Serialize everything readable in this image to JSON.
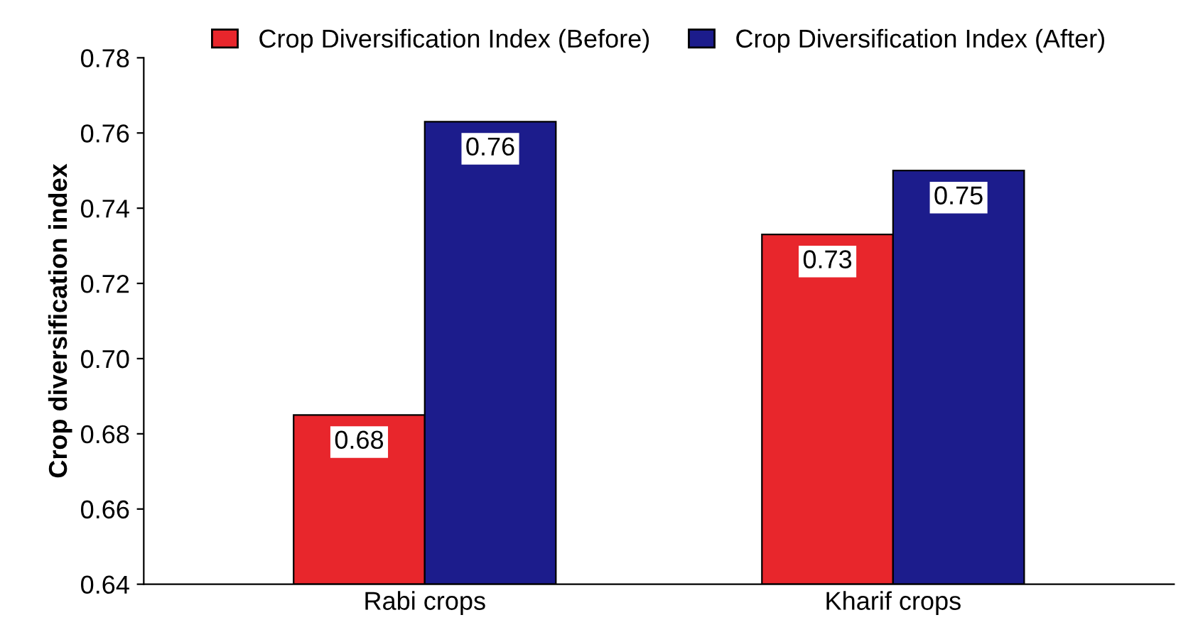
{
  "chart_data": {
    "type": "bar",
    "ylabel": "Crop diversification index",
    "categories": [
      "Rabi crops",
      "Kharif crops"
    ],
    "series": [
      {
        "name": "Crop Diversification Index (Before)",
        "color": "#e8262c",
        "values": [
          0.685,
          0.733
        ],
        "value_labels": [
          "0.68",
          "0.73"
        ]
      },
      {
        "name": "Crop Diversification Index (After)",
        "color": "#1c1c8c",
        "values": [
          0.763,
          0.75
        ],
        "value_labels": [
          "0.76",
          "0.75"
        ]
      }
    ],
    "ylim": [
      0.64,
      0.78
    ],
    "yticks": [
      0.64,
      0.66,
      0.68,
      {
        "value": 0.7,
        "label": "0.70"
      },
      0.72,
      0.74,
      0.76,
      0.78
    ],
    "legend": "top",
    "grid": false
  }
}
